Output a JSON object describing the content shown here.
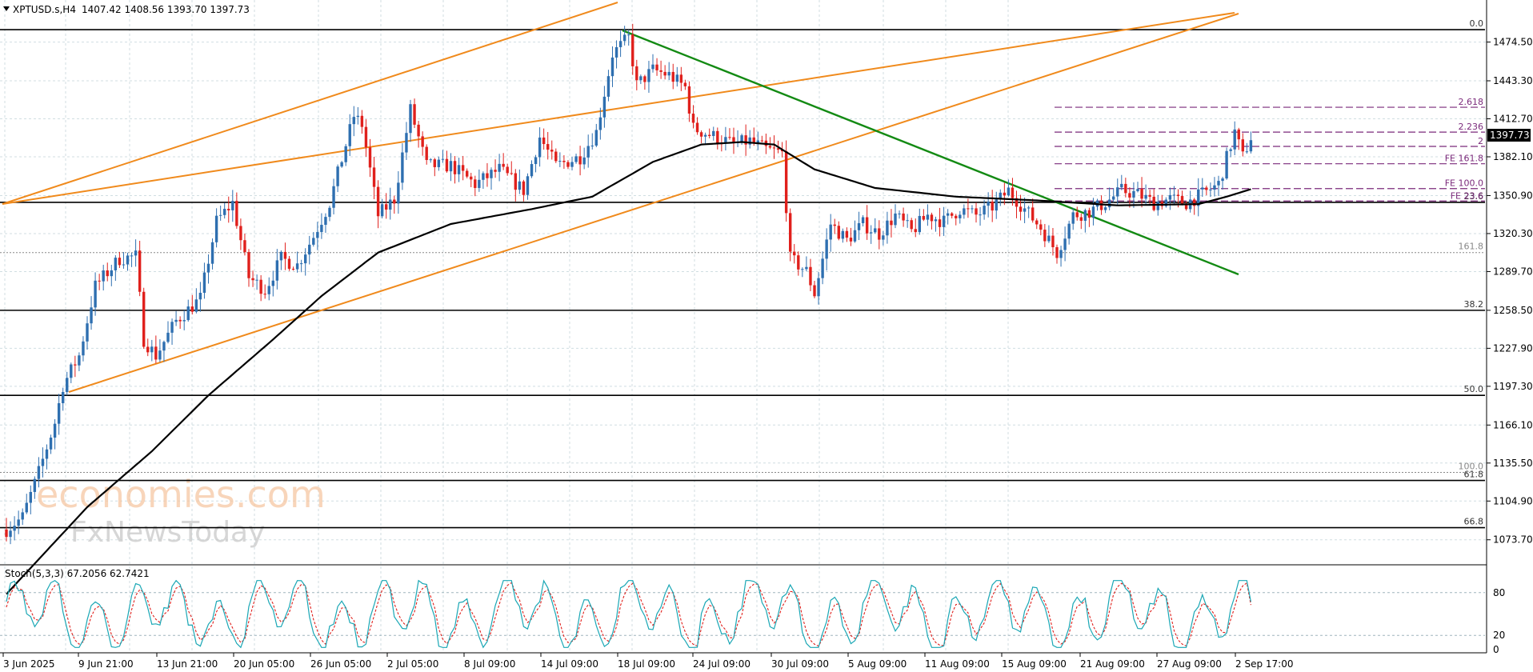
{
  "header": {
    "symbol": "XPTUSD.s,H4",
    "ohlc": "1407.42 1408.56 1393.70 1397.73"
  },
  "last_price": "1397.73",
  "watermark": {
    "line1": "economies.com",
    "line2": "FxNewsToday"
  },
  "colors": {
    "bull": "#2e6fb0",
    "bear": "#e0201c",
    "channel": "#f08a1c",
    "trend": "#138a13",
    "ma": "#000000",
    "fib": "#000000",
    "fe": "#7b2a7b",
    "stoch_main": "#1aa7b5",
    "stoch_signal": "#e0201c"
  },
  "chart_data": {
    "type": "candlestick",
    "price_axis": {
      "min": 1054.2,
      "max": 1494.2,
      "ticks": [
        "1474.50",
        "1443.30",
        "1412.70",
        "1382.10",
        "1350.90",
        "1320.30",
        "1289.70",
        "1258.50",
        "1227.90",
        "1197.30",
        "1166.10",
        "1135.50",
        "1104.90",
        "1073.70"
      ]
    },
    "time_axis": {
      "labels": [
        "3 Jun 2025",
        "9 Jun 21:00",
        "13 Jun 21:00",
        "20 Jun 05:00",
        "26 Jun 05:00",
        "2 Jul 05:00",
        "8 Jul 09:00",
        "14 Jul 09:00",
        "18 Jul 09:00",
        "24 Jul 09:00",
        "30 Jul 09:00",
        "5 Aug 09:00",
        "11 Aug 09:00",
        "15 Aug 09:00",
        "21 Aug 09:00",
        "27 Aug 09:00",
        "2 Sep 17:00"
      ]
    },
    "price_anchors": [
      [
        0,
        1082
      ],
      [
        4,
        1092
      ],
      [
        8,
        1128
      ],
      [
        12,
        1168
      ],
      [
        14,
        1198
      ],
      [
        18,
        1222
      ],
      [
        22,
        1278
      ],
      [
        28,
        1300
      ],
      [
        32,
        1302
      ],
      [
        34,
        1235
      ],
      [
        37,
        1222
      ],
      [
        42,
        1250
      ],
      [
        48,
        1268
      ],
      [
        52,
        1330
      ],
      [
        56,
        1345
      ],
      [
        60,
        1285
      ],
      [
        64,
        1275
      ],
      [
        68,
        1300
      ],
      [
        72,
        1295
      ],
      [
        76,
        1318
      ],
      [
        80,
        1345
      ],
      [
        86,
        1415
      ],
      [
        88,
        1408
      ],
      [
        92,
        1335
      ],
      [
        96,
        1348
      ],
      [
        100,
        1420
      ],
      [
        104,
        1375
      ],
      [
        110,
        1375
      ],
      [
        116,
        1360
      ],
      [
        122,
        1372
      ],
      [
        128,
        1355
      ],
      [
        132,
        1398
      ],
      [
        136,
        1375
      ],
      [
        142,
        1382
      ],
      [
        146,
        1402
      ],
      [
        150,
        1465
      ],
      [
        154,
        1478
      ],
      [
        156,
        1440
      ],
      [
        160,
        1452
      ],
      [
        164,
        1448
      ],
      [
        168,
        1438
      ],
      [
        170,
        1405
      ],
      [
        174,
        1400
      ],
      [
        178,
        1395
      ],
      [
        180,
        1392
      ],
      [
        184,
        1395
      ],
      [
        188,
        1388
      ],
      [
        192,
        1385
      ],
      [
        194,
        1300
      ],
      [
        198,
        1290
      ],
      [
        200,
        1272
      ],
      [
        204,
        1328
      ],
      [
        208,
        1315
      ],
      [
        212,
        1328
      ],
      [
        216,
        1320
      ],
      [
        220,
        1335
      ],
      [
        224,
        1322
      ],
      [
        228,
        1335
      ],
      [
        232,
        1330
      ],
      [
        236,
        1340
      ],
      [
        240,
        1335
      ],
      [
        244,
        1342
      ],
      [
        248,
        1355
      ],
      [
        252,
        1340
      ],
      [
        256,
        1325
      ],
      [
        260,
        1305
      ],
      [
        264,
        1335
      ],
      [
        268,
        1338
      ],
      [
        272,
        1345
      ],
      [
        276,
        1355
      ],
      [
        280,
        1352
      ],
      [
        284,
        1345
      ],
      [
        288,
        1348
      ],
      [
        292,
        1345
      ],
      [
        296,
        1352
      ],
      [
        300,
        1360
      ],
      [
        304,
        1402
      ],
      [
        306,
        1382
      ],
      [
        308,
        1398
      ]
    ],
    "moving_average": [
      [
        0,
        1030
      ],
      [
        20,
        1100
      ],
      [
        36,
        1145
      ],
      [
        50,
        1190
      ],
      [
        66,
        1235
      ],
      [
        78,
        1270
      ],
      [
        92,
        1305
      ],
      [
        110,
        1328
      ],
      [
        130,
        1340
      ],
      [
        145,
        1350
      ],
      [
        160,
        1378
      ],
      [
        172,
        1392
      ],
      [
        182,
        1394
      ],
      [
        190,
        1392
      ],
      [
        200,
        1372
      ],
      [
        215,
        1357
      ],
      [
        235,
        1350
      ],
      [
        255,
        1347
      ],
      [
        275,
        1343
      ],
      [
        295,
        1344
      ],
      [
        302,
        1350
      ],
      [
        308,
        1356
      ]
    ],
    "stochastic": {
      "label": "Stoch(5,3,3) 67.2056 62.7421",
      "range": [
        0,
        100
      ],
      "ticks": [
        "80",
        "20",
        "0"
      ]
    },
    "fib_levels": [
      {
        "label": "0.0",
        "price": 1484.5
      },
      {
        "label": "23.6",
        "price": 1345.4
      },
      {
        "label": "38.2",
        "price": 1258.5
      },
      {
        "label": "50.0",
        "price": 1190.0
      },
      {
        "label": "61.8",
        "price": 1121.5
      },
      {
        "label": "66.8",
        "price": 1083.5
      }
    ],
    "fib_faint_levels": [
      {
        "label": "161.8",
        "price": 1305.0
      },
      {
        "label": "100.0",
        "price": 1128.0
      }
    ],
    "fe_levels": [
      {
        "label": "2.618",
        "price": 1422.0
      },
      {
        "label": "2.236",
        "price": 1402.0
      },
      {
        "label": "2",
        "price": 1390.5
      },
      {
        "label": "FE 161.8",
        "price": 1376.5
      },
      {
        "label": "FE 100.0",
        "price": 1356.5
      },
      {
        "label": "FE 23.6",
        "price": 1346.5
      }
    ]
  }
}
